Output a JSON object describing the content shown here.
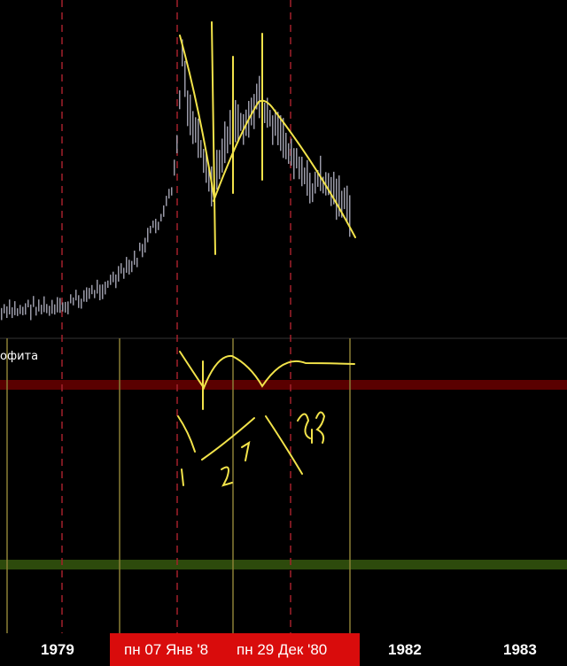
{
  "indicator": {
    "title": "офита"
  },
  "time_axis": {
    "ticks": [
      "1979",
      "1982",
      "1983"
    ],
    "crosshair_labels": [
      "пн 07 Янв '8",
      "пн 29 Дек '80"
    ],
    "highlight_color": "#d90c0c"
  },
  "colors": {
    "background": "#000000",
    "price_bars": "#9a9aa8",
    "annotation": "#f2e34a",
    "vertical_lines_solid": "#8a7f35",
    "vertical_lines_dashed": "#a3202a",
    "level_red": "#5a0000",
    "level_green": "#2d4a0c"
  }
}
